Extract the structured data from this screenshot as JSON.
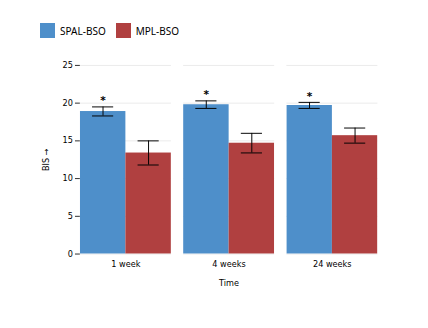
{
  "chart_data": {
    "type": "bar",
    "categories": [
      "1 week",
      "4 weeks",
      "24 weeks"
    ],
    "series": [
      {
        "name": "SPAL-BSO",
        "color": "#4E8FCA",
        "values": [
          18.9,
          19.8,
          19.7
        ],
        "errors": [
          0.6,
          0.5,
          0.4
        ]
      },
      {
        "name": "MPL-BSO",
        "color": "#B04040",
        "values": [
          13.4,
          14.7,
          15.7
        ],
        "errors": [
          1.6,
          1.3,
          1.0
        ]
      }
    ],
    "xlabel": "Time",
    "ylabel": "BIS",
    "ylim": [
      0,
      25
    ],
    "yticks": [
      0,
      5,
      10,
      15,
      20,
      25
    ],
    "grid": true,
    "legend": "top",
    "annotations": [
      {
        "text": "*",
        "category": "1 week",
        "series": "SPAL-BSO"
      },
      {
        "text": "*",
        "category": "4 weeks",
        "series": "SPAL-BSO"
      },
      {
        "text": "*",
        "category": "24 weeks",
        "series": "SPAL-BSO"
      }
    ]
  }
}
